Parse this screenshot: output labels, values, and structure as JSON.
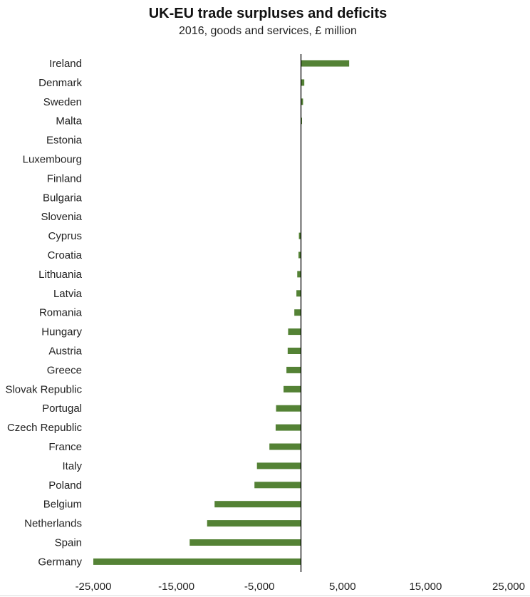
{
  "chart_data": {
    "type": "bar",
    "orientation": "horizontal",
    "title": "UK-EU trade surpluses and deficits",
    "subtitle": "2016, goods and services, £ million",
    "xlabel": "",
    "ylabel": "",
    "xlim": [
      -25000,
      25000
    ],
    "x_ticks": [
      -25000,
      -15000,
      -5000,
      5000,
      15000,
      25000
    ],
    "x_tick_labels": [
      "-25,000",
      "-15,000",
      "-5,000",
      "5,000",
      "15,000",
      "25,000"
    ],
    "grid": false,
    "categories": [
      "Ireland",
      "Denmark",
      "Sweden",
      "Malta",
      "Estonia",
      "Luxembourg",
      "Finland",
      "Bulgaria",
      "Slovenia",
      "Cyprus",
      "Croatia",
      "Lithuania",
      "Latvia",
      "Romania",
      "Hungary",
      "Austria",
      "Greece",
      "Slovak Republic",
      "Portugal",
      "Czech Republic",
      "France",
      "Italy",
      "Poland",
      "Belgium",
      "Netherlands",
      "Spain",
      "Germany"
    ],
    "values": [
      5800,
      400,
      250,
      100,
      0,
      0,
      0,
      0,
      0,
      -250,
      -300,
      -450,
      -550,
      -800,
      -1550,
      -1600,
      -1750,
      -2100,
      -3000,
      -3050,
      -3800,
      -5300,
      -5600,
      -10400,
      -11300,
      -13400,
      -25000
    ],
    "bar_color": "#548235"
  }
}
